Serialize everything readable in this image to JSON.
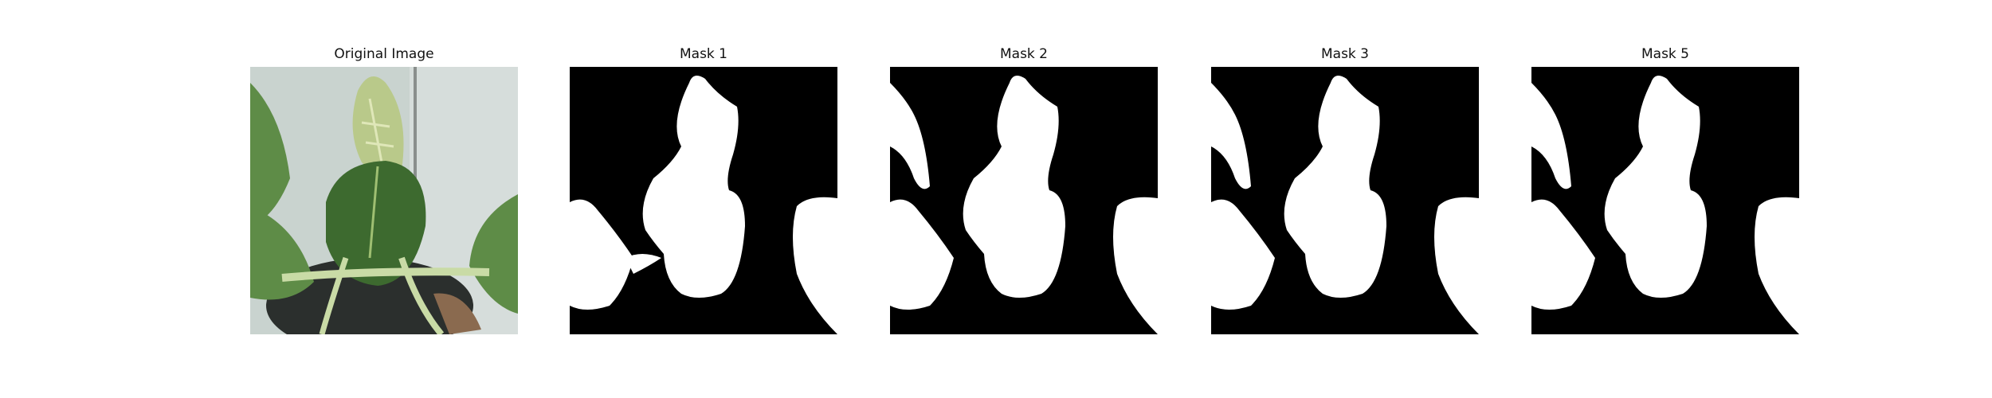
{
  "figure": {
    "panels": [
      {
        "title": "Original Image",
        "kind": "photo"
      },
      {
        "title": "Mask 1",
        "kind": "mask"
      },
      {
        "title": "Mask 2",
        "kind": "mask"
      },
      {
        "title": "Mask 3",
        "kind": "mask"
      },
      {
        "title": "Mask 5",
        "kind": "mask"
      }
    ],
    "colors": {
      "mask_background": "#000000",
      "mask_foreground": "#ffffff",
      "wall": "#c9d3cf",
      "leaf_dark": "#3d6a2f",
      "leaf_mid": "#5e8c47",
      "leaf_light": "#9fbf72",
      "stem": "#c9dba6",
      "pot": "#2b2f2d"
    }
  }
}
